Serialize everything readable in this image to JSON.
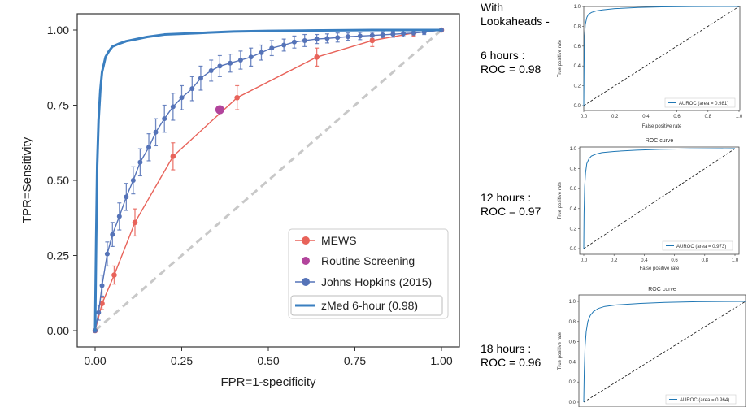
{
  "main": {
    "xlabel": "FPR=1-specificity",
    "ylabel": "TPR=Sensitivity",
    "xticks": [
      "0.00",
      "0.25",
      "0.50",
      "0.75",
      "1.00"
    ],
    "yticks": [
      "0.00",
      "0.25",
      "0.50",
      "0.75",
      "1.00"
    ],
    "legend": {
      "mews": "MEWS",
      "routine": "Routine Screening",
      "jh": "Johns Hopkins (2015)",
      "zmed": "zMed 6-hour (0.98)"
    }
  },
  "side": {
    "header": "With\nLookaheads -",
    "six": "6 hours :\nROC = 0.98",
    "twelve": "12 hours :\nROC = 0.97",
    "eighteen": "18 hours :\nROC = 0.96"
  },
  "mini_plots": [
    {
      "title": "",
      "xlabel": "False positive rate",
      "ylabel": "True positive rate",
      "legend": "AUROC (area = 0.981)",
      "xticks": [
        "0.0",
        "0.2",
        "0.4",
        "0.6",
        "0.8",
        "1.0"
      ],
      "yticks": [
        "0.0",
        "0.2",
        "0.4",
        "0.6",
        "0.8",
        "1.0"
      ]
    },
    {
      "title": "ROC curve",
      "xlabel": "False positive rate",
      "ylabel": "True positive rate",
      "legend": "AUROC (area = 0.973)",
      "xticks": [
        "0.0",
        "0.2",
        "0.4",
        "0.6",
        "0.8",
        "1.0"
      ],
      "yticks": [
        "0.0",
        "0.2",
        "0.4",
        "0.6",
        "0.8",
        "1.0"
      ]
    },
    {
      "title": "ROC curve",
      "xlabel": "",
      "ylabel": "True positive rate",
      "legend": "AUROC (area = 0.964)",
      "xticks": [],
      "yticks": [
        "0.0",
        "0.2",
        "0.4",
        "0.6",
        "0.8",
        "1.0"
      ]
    }
  ],
  "colors": {
    "mews": "#e8635a",
    "routine": "#b2449c",
    "jh": "#5573b8",
    "zmed": "#3a7fc0",
    "chance": "#c8c8c8",
    "mini": "#1f77b4"
  },
  "chart_data": [
    {
      "type": "line",
      "xlabel": "FPR=1-specificity",
      "ylabel": "TPR=Sensitivity",
      "xlim": [
        0,
        1
      ],
      "ylim": [
        0,
        1
      ],
      "grid": false,
      "legend_position": "bottom-right",
      "series": [
        {
          "name": "MEWS",
          "x": [
            0.0,
            0.02,
            0.055,
            0.115,
            0.225,
            0.41,
            0.64,
            0.8,
            0.92,
            1.0
          ],
          "y": [
            0.0,
            0.09,
            0.185,
            0.36,
            0.58,
            0.775,
            0.91,
            0.965,
            0.99,
            1.0
          ],
          "err": [
            0.0,
            0.02,
            0.03,
            0.045,
            0.045,
            0.04,
            0.03,
            0.02,
            0.01,
            0.0
          ]
        },
        {
          "name": "Routine Screening",
          "x": [
            0.36
          ],
          "y": [
            0.735
          ]
        },
        {
          "name": "Johns Hopkins (2015)",
          "x": [
            0.0,
            0.01,
            0.02,
            0.035,
            0.05,
            0.07,
            0.09,
            0.11,
            0.13,
            0.155,
            0.175,
            0.2,
            0.225,
            0.25,
            0.28,
            0.305,
            0.335,
            0.36,
            0.39,
            0.42,
            0.45,
            0.48,
            0.51,
            0.545,
            0.575,
            0.605,
            0.64,
            0.67,
            0.7,
            0.73,
            0.765,
            0.8,
            0.83,
            0.86,
            0.89,
            0.92,
            0.95,
            1.0
          ],
          "y": [
            0.0,
            0.06,
            0.15,
            0.255,
            0.32,
            0.38,
            0.445,
            0.5,
            0.56,
            0.61,
            0.66,
            0.705,
            0.745,
            0.775,
            0.805,
            0.84,
            0.865,
            0.88,
            0.89,
            0.9,
            0.91,
            0.925,
            0.94,
            0.95,
            0.96,
            0.965,
            0.97,
            0.972,
            0.975,
            0.978,
            0.98,
            0.982,
            0.984,
            0.986,
            0.988,
            0.99,
            0.993,
            1.0
          ],
          "err": [
            0.0,
            0.025,
            0.035,
            0.04,
            0.04,
            0.045,
            0.045,
            0.045,
            0.045,
            0.045,
            0.045,
            0.045,
            0.045,
            0.04,
            0.04,
            0.04,
            0.035,
            0.035,
            0.03,
            0.03,
            0.03,
            0.025,
            0.025,
            0.02,
            0.02,
            0.02,
            0.015,
            0.015,
            0.015,
            0.012,
            0.012,
            0.01,
            0.01,
            0.01,
            0.01,
            0.008,
            0.008,
            0.0
          ]
        },
        {
          "name": "zMed 6-hour (0.98)",
          "x": [
            0.0,
            0.003,
            0.006,
            0.01,
            0.015,
            0.02,
            0.03,
            0.04,
            0.05,
            0.07,
            0.09,
            0.12,
            0.15,
            0.2,
            0.3,
            0.4,
            0.5,
            0.6,
            0.8,
            1.0
          ],
          "y": [
            0.0,
            0.3,
            0.55,
            0.7,
            0.8,
            0.86,
            0.91,
            0.93,
            0.945,
            0.955,
            0.963,
            0.97,
            0.977,
            0.985,
            0.99,
            0.995,
            0.997,
            0.998,
            1.0,
            1.0
          ]
        },
        {
          "name": "",
          "x": [
            0,
            1
          ],
          "y": [
            0,
            1
          ]
        }
      ]
    },
    {
      "type": "line",
      "xlabel": "False positive rate",
      "ylabel": "True positive rate",
      "xlim": [
        0,
        1
      ],
      "ylim": [
        0,
        1
      ],
      "series": [
        {
          "name": "AUROC (area = 0.981)",
          "x": [
            0.0,
            0.002,
            0.005,
            0.01,
            0.02,
            0.03,
            0.05,
            0.08,
            0.12,
            0.2,
            0.35,
            0.5,
            0.7,
            1.0
          ],
          "y": [
            0.0,
            0.4,
            0.7,
            0.82,
            0.89,
            0.92,
            0.94,
            0.955,
            0.965,
            0.978,
            0.99,
            0.996,
            0.999,
            1.0
          ]
        },
        {
          "name": "",
          "x": [
            0,
            1
          ],
          "y": [
            0,
            1
          ]
        }
      ]
    },
    {
      "type": "line",
      "title": "ROC curve",
      "xlabel": "False positive rate",
      "ylabel": "True positive rate",
      "xlim": [
        0,
        1
      ],
      "ylim": [
        0,
        1
      ],
      "series": [
        {
          "name": "AUROC (area = 0.973)",
          "x": [
            0.0,
            0.002,
            0.006,
            0.012,
            0.02,
            0.035,
            0.05,
            0.08,
            0.12,
            0.2,
            0.35,
            0.5,
            0.7,
            1.0
          ],
          "y": [
            0.0,
            0.35,
            0.62,
            0.76,
            0.85,
            0.9,
            0.925,
            0.945,
            0.96,
            0.972,
            0.985,
            0.993,
            0.998,
            1.0
          ]
        },
        {
          "name": "",
          "x": [
            0,
            1
          ],
          "y": [
            0,
            1
          ]
        }
      ]
    },
    {
      "type": "line",
      "title": "ROC curve",
      "ylabel": "True positive rate",
      "xlim": [
        0,
        1
      ],
      "ylim": [
        0,
        1
      ],
      "series": [
        {
          "name": "AUROC (area = 0.964)",
          "x": [
            0.0,
            0.003,
            0.008,
            0.015,
            0.025,
            0.04,
            0.06,
            0.09,
            0.13,
            0.2,
            0.35,
            0.5,
            0.7,
            1.0
          ],
          "y": [
            0.0,
            0.3,
            0.55,
            0.7,
            0.8,
            0.86,
            0.9,
            0.93,
            0.95,
            0.965,
            0.98,
            0.99,
            0.997,
            1.0
          ]
        },
        {
          "name": "",
          "x": [
            0,
            1
          ],
          "y": [
            0,
            1
          ]
        }
      ]
    }
  ]
}
